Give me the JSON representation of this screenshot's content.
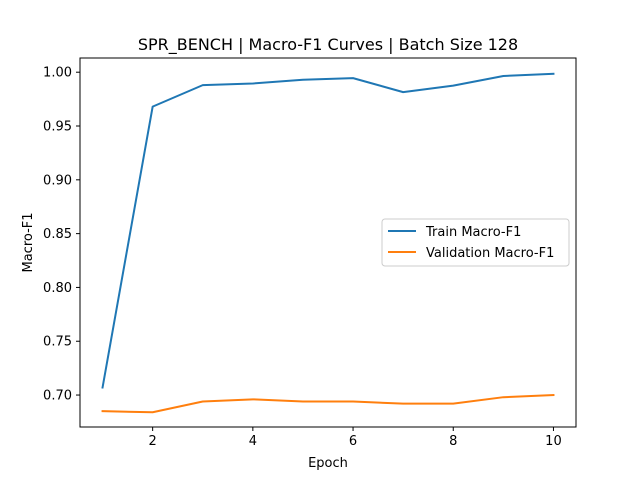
{
  "chart_data": {
    "type": "line",
    "title": "SPR_BENCH | Macro-F1 Curves | Batch Size 128",
    "xlabel": "Epoch",
    "ylabel": "Macro-F1",
    "x": [
      1,
      2,
      3,
      4,
      5,
      6,
      7,
      8,
      9,
      10
    ],
    "series": [
      {
        "name": "Train Macro-F1",
        "color": "#1f77b4",
        "values": [
          0.707,
          0.968,
          0.988,
          0.9895,
          0.993,
          0.9945,
          0.9815,
          0.9875,
          0.9965,
          0.9985
        ]
      },
      {
        "name": "Validation Macro-F1",
        "color": "#ff7f0e",
        "values": [
          0.685,
          0.684,
          0.694,
          0.696,
          0.694,
          0.694,
          0.692,
          0.692,
          0.698,
          0.7
        ]
      }
    ],
    "xlim": [
      0.55,
      10.45
    ],
    "ylim": [
      0.6703,
      1.0132
    ],
    "xticks": [
      2,
      4,
      6,
      8,
      10
    ],
    "xtick_labels": [
      "2",
      "4",
      "6",
      "8",
      "10"
    ],
    "yticks": [
      0.7,
      0.75,
      0.8,
      0.85,
      0.9,
      0.95,
      1.0
    ],
    "ytick_labels": [
      "0.70",
      "0.75",
      "0.80",
      "0.85",
      "0.90",
      "0.95",
      "1.00"
    ],
    "grid": false,
    "legend_position": "center-right"
  }
}
